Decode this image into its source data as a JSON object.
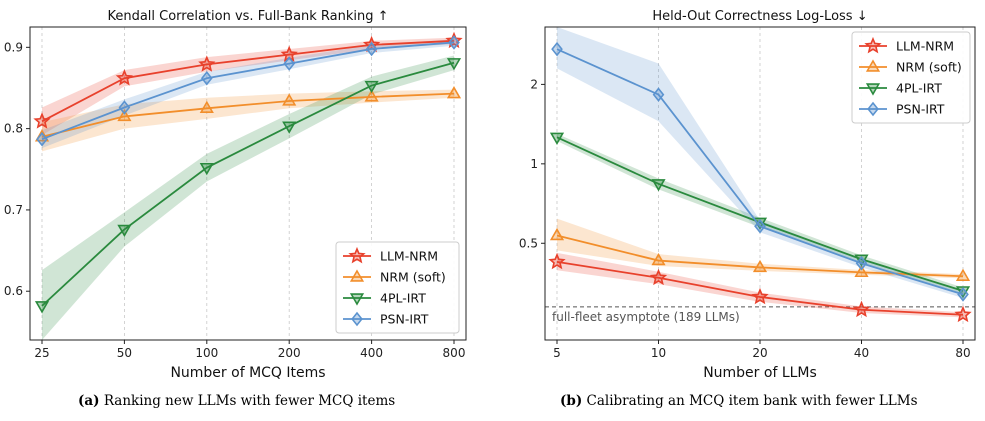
{
  "colors": {
    "llm_nrm": "#e8412c",
    "nrm_soft": "#f28e2b",
    "irt4pl": "#2a8a3e",
    "psn_irt": "#5b93cf",
    "asymptote": "#555555"
  },
  "captions": {
    "a_tag": "(a)",
    "a_text": "Ranking new LLMs with fewer MCQ items",
    "b_tag": "(b)",
    "b_text": "Calibrating an MCQ item bank with fewer LLMs"
  },
  "chart_data": [
    {
      "type": "line",
      "title": "Kendall Correlation vs. Full-Bank Ranking ↑",
      "xlabel": "Number of MCQ Items",
      "ylabel": "",
      "x_scale": "log2",
      "categories": [
        "25",
        "50",
        "100",
        "200",
        "400",
        "800"
      ],
      "x": [
        25,
        50,
        100,
        200,
        400,
        800
      ],
      "ylim": [
        0.54,
        0.925
      ],
      "yticks": [
        0.6,
        0.7,
        0.8,
        0.9
      ],
      "ytick_labels": [
        "0.6",
        "0.7",
        "0.8",
        "0.9"
      ],
      "grid": "vertical dashed",
      "legend": "lower-right",
      "series": [
        {
          "name": "LLM-NRM",
          "marker": "star",
          "values": [
            0.809,
            0.862,
            0.879,
            0.891,
            0.903,
            0.908
          ],
          "band": [
            [
              0.792,
              0.826
            ],
            [
              0.852,
              0.872
            ],
            [
              0.87,
              0.888
            ],
            [
              0.884,
              0.898
            ],
            [
              0.898,
              0.908
            ],
            [
              0.904,
              0.912
            ]
          ]
        },
        {
          "name": "NRM (soft)",
          "marker": "triangle-up",
          "values": [
            0.79,
            0.815,
            0.825,
            0.834,
            0.839,
            0.843
          ],
          "band": [
            [
              0.772,
              0.808
            ],
            [
              0.8,
              0.83
            ],
            [
              0.812,
              0.838
            ],
            [
              0.825,
              0.843
            ],
            [
              0.832,
              0.846
            ],
            [
              0.838,
              0.848
            ]
          ]
        },
        {
          "name": "4PL-IRT",
          "marker": "triangle-down",
          "values": [
            0.582,
            0.676,
            0.752,
            0.803,
            0.853,
            0.881
          ],
          "band": [
            [
              0.54,
              0.626
            ],
            [
              0.655,
              0.697
            ],
            [
              0.735,
              0.769
            ],
            [
              0.788,
              0.818
            ],
            [
              0.842,
              0.864
            ],
            [
              0.872,
              0.89
            ]
          ]
        },
        {
          "name": "PSN-IRT",
          "marker": "diamond",
          "values": [
            0.787,
            0.826,
            0.862,
            0.88,
            0.898,
            0.906
          ],
          "band": [
            [
              0.776,
              0.798
            ],
            [
              0.816,
              0.836
            ],
            [
              0.854,
              0.87
            ],
            [
              0.873,
              0.887
            ],
            [
              0.893,
              0.903
            ],
            [
              0.902,
              0.91
            ]
          ]
        }
      ]
    },
    {
      "type": "line",
      "title": "Held-Out Correctness Log-Loss ↓",
      "xlabel": "Number of LLMs",
      "ylabel": "",
      "x_scale": "log2",
      "y_scale": "log",
      "categories": [
        "5",
        "10",
        "20",
        "40",
        "80"
      ],
      "x": [
        5,
        10,
        20,
        40,
        80
      ],
      "ylim": [
        0.215,
        3.3
      ],
      "yticks": [
        0.5,
        1,
        2
      ],
      "ytick_labels": [
        "0.5",
        "1",
        "2"
      ],
      "grid": "vertical dashed",
      "legend": "top-right",
      "annotation": {
        "text": "full-fleet asymptote (189 LLMs)",
        "y": 0.287
      },
      "series": [
        {
          "name": "LLM-NRM",
          "marker": "star",
          "values": [
            0.425,
            0.37,
            0.313,
            0.28,
            0.268
          ],
          "band": [
            [
              0.395,
              0.46
            ],
            [
              0.35,
              0.39
            ],
            [
              0.3,
              0.325
            ],
            [
              0.272,
              0.288
            ],
            [
              0.262,
              0.274
            ]
          ]
        },
        {
          "name": "NRM (soft)",
          "marker": "triangle-up",
          "values": [
            0.535,
            0.43,
            0.405,
            0.388,
            0.375
          ],
          "band": [
            [
              0.47,
              0.62
            ],
            [
              0.41,
              0.455
            ],
            [
              0.393,
              0.418
            ],
            [
              0.38,
              0.396
            ],
            [
              0.368,
              0.382
            ]
          ]
        },
        {
          "name": "4PL-IRT",
          "marker": "triangle-down",
          "values": [
            1.26,
            0.84,
            0.6,
            0.435,
            0.33
          ],
          "band": [
            [
              1.22,
              1.3
            ],
            [
              0.8,
              0.88
            ],
            [
              0.575,
              0.625
            ],
            [
              0.42,
              0.45
            ],
            [
              0.32,
              0.34
            ]
          ]
        },
        {
          "name": "PSN-IRT",
          "marker": "diamond",
          "values": [
            2.72,
            1.83,
            0.58,
            0.42,
            0.32
          ],
          "band": [
            [
              2.3,
              3.3
            ],
            [
              1.45,
              2.4
            ],
            [
              0.55,
              0.61
            ],
            [
              0.405,
              0.435
            ],
            [
              0.31,
              0.33
            ]
          ]
        }
      ]
    }
  ]
}
